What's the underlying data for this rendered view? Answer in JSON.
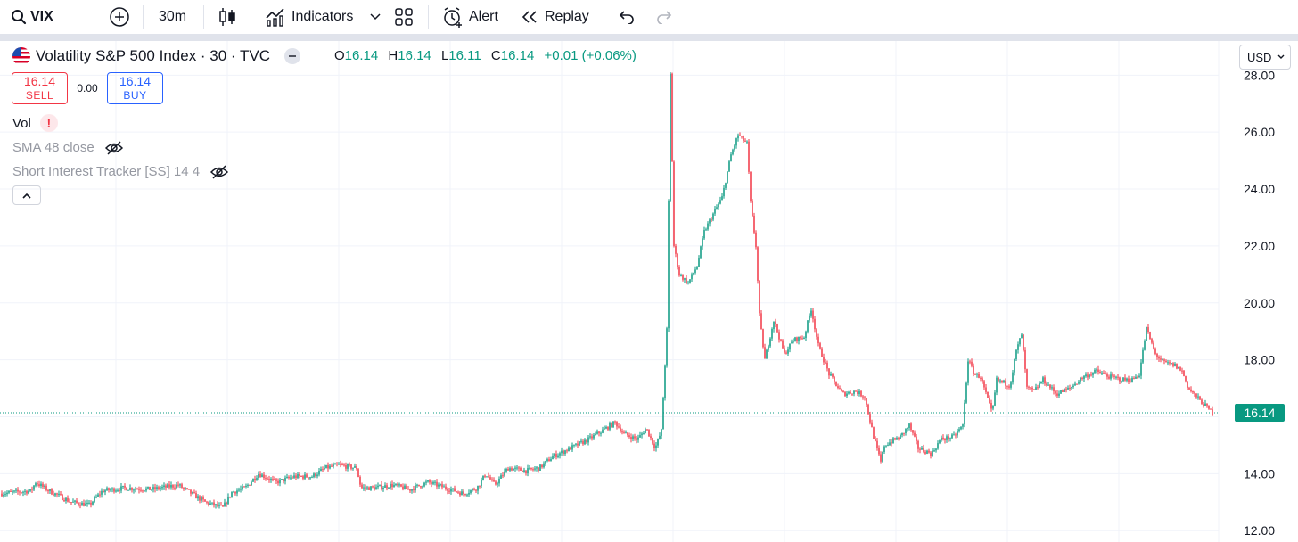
{
  "toolbar": {
    "symbol": "VIX",
    "interval": "30m",
    "indicators_label": "Indicators",
    "alert_label": "Alert",
    "replay_label": "Replay",
    "icons": [
      "search-icon",
      "add-symbol-icon",
      "candles-icon",
      "indicators-icon",
      "chevron-down-icon",
      "layout-grid-icon",
      "alarm-clock-icon",
      "replay-icon",
      "undo-icon",
      "redo-icon"
    ]
  },
  "legend": {
    "title": "Volatility S&P 500 Index · 30 · TVC",
    "o_label": "O",
    "o": "16.14",
    "h_label": "H",
    "h": "16.14",
    "l_label": "L",
    "l": "16.11",
    "c_label": "C",
    "c": "16.14",
    "change": "+0.01 (+0.06%)"
  },
  "trade": {
    "sell_price": "16.14",
    "sell_label": "SELL",
    "spread": "0.00",
    "buy_price": "16.14",
    "buy_label": "BUY"
  },
  "indicators": {
    "vol_label": "Vol",
    "warning_glyph": "!",
    "sma_label": "SMA 48 close",
    "sit_label": "Short Interest Tracker [SS] 14 4"
  },
  "currency": "USD",
  "colors": {
    "up": "#089981",
    "down": "#f23645",
    "grid": "#f0f3fa",
    "axis_text": "#131722"
  },
  "chart_data": {
    "type": "candlestick",
    "symbol": "VIX",
    "interval": "30",
    "y_ticks": [
      "12.00",
      "14.00",
      "16.00",
      "18.00",
      "20.00",
      "22.00",
      "24.00",
      "26.00",
      "28.00"
    ],
    "ylim": [
      11.6,
      29.2
    ],
    "last_price": 16.14,
    "last_price_label": "16.14",
    "grid": true,
    "price_path": [
      [
        0,
        13.3
      ],
      [
        35,
        13.4
      ],
      [
        40,
        13.7
      ],
      [
        55,
        13.4
      ],
      [
        80,
        13.0
      ],
      [
        100,
        12.9
      ],
      [
        115,
        13.4
      ],
      [
        140,
        13.5
      ],
      [
        170,
        13.45
      ],
      [
        200,
        13.6
      ],
      [
        215,
        13.3
      ],
      [
        230,
        13.0
      ],
      [
        250,
        12.8
      ],
      [
        260,
        13.35
      ],
      [
        275,
        13.5
      ],
      [
        290,
        14.0
      ],
      [
        310,
        13.7
      ],
      [
        330,
        13.9
      ],
      [
        350,
        13.9
      ],
      [
        365,
        14.2
      ],
      [
        380,
        14.3
      ],
      [
        400,
        14.2
      ],
      [
        405,
        13.5
      ],
      [
        420,
        13.5
      ],
      [
        440,
        13.6
      ],
      [
        460,
        13.45
      ],
      [
        480,
        13.7
      ],
      [
        500,
        13.5
      ],
      [
        520,
        13.3
      ],
      [
        535,
        13.5
      ],
      [
        545,
        14.0
      ],
      [
        555,
        13.6
      ],
      [
        570,
        14.2
      ],
      [
        590,
        14.1
      ],
      [
        605,
        14.2
      ],
      [
        620,
        14.6
      ],
      [
        640,
        14.9
      ],
      [
        660,
        15.2
      ],
      [
        680,
        15.6
      ],
      [
        690,
        15.8
      ],
      [
        700,
        15.4
      ],
      [
        715,
        15.2
      ],
      [
        725,
        15.6
      ],
      [
        735,
        14.9
      ],
      [
        742,
        15.5
      ],
      [
        748,
        19.0
      ],
      [
        752,
        28.0
      ],
      [
        756,
        22.0
      ],
      [
        762,
        21.0
      ],
      [
        772,
        20.7
      ],
      [
        782,
        21.3
      ],
      [
        790,
        22.5
      ],
      [
        798,
        23.0
      ],
      [
        810,
        23.7
      ],
      [
        820,
        25.2
      ],
      [
        828,
        25.9
      ],
      [
        838,
        25.6
      ],
      [
        842,
        23.5
      ],
      [
        848,
        22.0
      ],
      [
        852,
        19.5
      ],
      [
        858,
        18.0
      ],
      [
        868,
        19.4
      ],
      [
        880,
        18.2
      ],
      [
        890,
        18.7
      ],
      [
        902,
        18.8
      ],
      [
        910,
        19.8
      ],
      [
        918,
        18.5
      ],
      [
        930,
        17.5
      ],
      [
        945,
        16.8
      ],
      [
        960,
        16.9
      ],
      [
        970,
        16.7
      ],
      [
        980,
        15.3
      ],
      [
        988,
        14.4
      ],
      [
        992,
        15.0
      ],
      [
        1010,
        15.3
      ],
      [
        1020,
        15.7
      ],
      [
        1030,
        14.9
      ],
      [
        1045,
        14.7
      ],
      [
        1055,
        15.2
      ],
      [
        1070,
        15.3
      ],
      [
        1080,
        15.7
      ],
      [
        1086,
        18.0
      ],
      [
        1093,
        17.5
      ],
      [
        1100,
        17.4
      ],
      [
        1108,
        16.6
      ],
      [
        1113,
        16.1
      ],
      [
        1118,
        17.3
      ],
      [
        1133,
        17.1
      ],
      [
        1140,
        18.3
      ],
      [
        1146,
        18.9
      ],
      [
        1152,
        17.0
      ],
      [
        1160,
        16.9
      ],
      [
        1170,
        17.3
      ],
      [
        1185,
        16.8
      ],
      [
        1200,
        17.0
      ],
      [
        1215,
        17.4
      ],
      [
        1230,
        17.6
      ],
      [
        1245,
        17.4
      ],
      [
        1260,
        17.3
      ],
      [
        1270,
        17.3
      ],
      [
        1278,
        17.5
      ],
      [
        1286,
        19.1
      ],
      [
        1296,
        18.2
      ],
      [
        1305,
        17.9
      ],
      [
        1318,
        17.8
      ],
      [
        1326,
        17.6
      ],
      [
        1333,
        17.0
      ],
      [
        1345,
        16.6
      ],
      [
        1360,
        16.14
      ]
    ]
  }
}
